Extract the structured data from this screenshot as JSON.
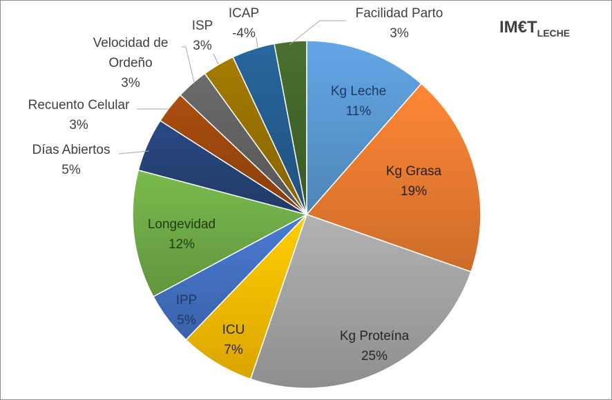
{
  "chart_data": {
    "type": "pie",
    "title": "IM€T",
    "title_subscript": "LECHE",
    "start_angle_deg": 0,
    "direction": "clockwise",
    "slices": [
      {
        "label": "Kg Leche",
        "pct_label": "11%",
        "value": 11.5,
        "color": "#5b9bd5"
      },
      {
        "label": "Kg Grasa",
        "pct_label": "19%",
        "value": 19,
        "color": "#ed7d31"
      },
      {
        "label": "Kg Proteína",
        "pct_label": "25%",
        "value": 25,
        "color": "#a5a5a5"
      },
      {
        "label": "ICU",
        "pct_label": "7%",
        "value": 7,
        "color": "#ffc000"
      },
      {
        "label": "IPP",
        "pct_label": "5%",
        "value": 5,
        "color": "#4472c4"
      },
      {
        "label": "Longevidad",
        "pct_label": "12%",
        "value": 12,
        "color": "#70ad47"
      },
      {
        "label": "Días Abiertos",
        "pct_label": "5%",
        "value": 5,
        "color": "#264478"
      },
      {
        "label": "Recuento Celular",
        "pct_label": "3%",
        "value": 3,
        "color": "#9e480e"
      },
      {
        "label": "Velocidad de Ordeño",
        "pct_label": "3%",
        "value": 3,
        "color": "#636363"
      },
      {
        "label": "ISP",
        "pct_label": "3%",
        "value": 3,
        "color": "#997300"
      },
      {
        "label": "ICAP",
        "pct_label": "-4%",
        "value": 4,
        "color": "#255e91"
      },
      {
        "label": "Facilidad Parto",
        "pct_label": "3%",
        "value": 3,
        "color": "#43682b"
      }
    ],
    "legend": "none"
  }
}
